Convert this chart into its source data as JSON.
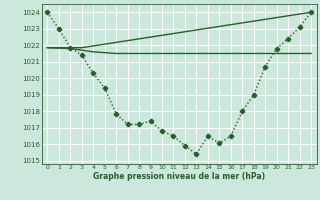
{
  "background_color": "#cce8dc",
  "grid_color": "#ffffff",
  "line_color": "#2a5e2a",
  "xlabel": "Graphe pression niveau de la mer (hPa)",
  "xlim": [
    -0.5,
    23.5
  ],
  "ylim": [
    1014.8,
    1024.5
  ],
  "yticks": [
    1015,
    1016,
    1017,
    1018,
    1019,
    1020,
    1021,
    1022,
    1023,
    1024
  ],
  "xticks": [
    0,
    1,
    2,
    3,
    4,
    5,
    6,
    7,
    8,
    9,
    10,
    11,
    12,
    13,
    14,
    15,
    16,
    17,
    18,
    19,
    20,
    21,
    22,
    23
  ],
  "series": [
    {
      "x": [
        0,
        1,
        2,
        3,
        4,
        5,
        6,
        7,
        8,
        9,
        10,
        11,
        12,
        13,
        14,
        15,
        16,
        17,
        18,
        19,
        20,
        21,
        22,
        23
      ],
      "y": [
        1024.0,
        1023.0,
        1021.85,
        1021.4,
        1020.3,
        1019.4,
        1017.85,
        1017.2,
        1017.2,
        1017.4,
        1016.8,
        1016.5,
        1015.9,
        1015.4,
        1016.5,
        1016.05,
        1016.5,
        1018.0,
        1019.0,
        1020.7,
        1021.8,
        1022.4,
        1023.1,
        1024.0
      ],
      "linestyle": "dotted",
      "marker": "P",
      "markersize": 3.0,
      "linewidth": 1.0
    },
    {
      "x": [
        0,
        2,
        3,
        4,
        5,
        6,
        7,
        8,
        9,
        10,
        11,
        12,
        13,
        14,
        15,
        16,
        17,
        18,
        19,
        20,
        21,
        22,
        23
      ],
      "y": [
        1021.85,
        1021.8,
        1021.7,
        1021.6,
        1021.55,
        1021.5,
        1021.5,
        1021.5,
        1021.5,
        1021.5,
        1021.5,
        1021.5,
        1021.5,
        1021.5,
        1021.5,
        1021.5,
        1021.5,
        1021.5,
        1021.5,
        1021.5,
        1021.5,
        1021.5,
        1021.5
      ],
      "linestyle": "solid",
      "marker": null,
      "markersize": 0,
      "linewidth": 1.0
    },
    {
      "x": [
        0,
        2,
        3,
        23
      ],
      "y": [
        1021.85,
        1021.85,
        1021.85,
        1024.0
      ],
      "linestyle": "solid",
      "marker": null,
      "markersize": 0,
      "linewidth": 1.0
    }
  ]
}
